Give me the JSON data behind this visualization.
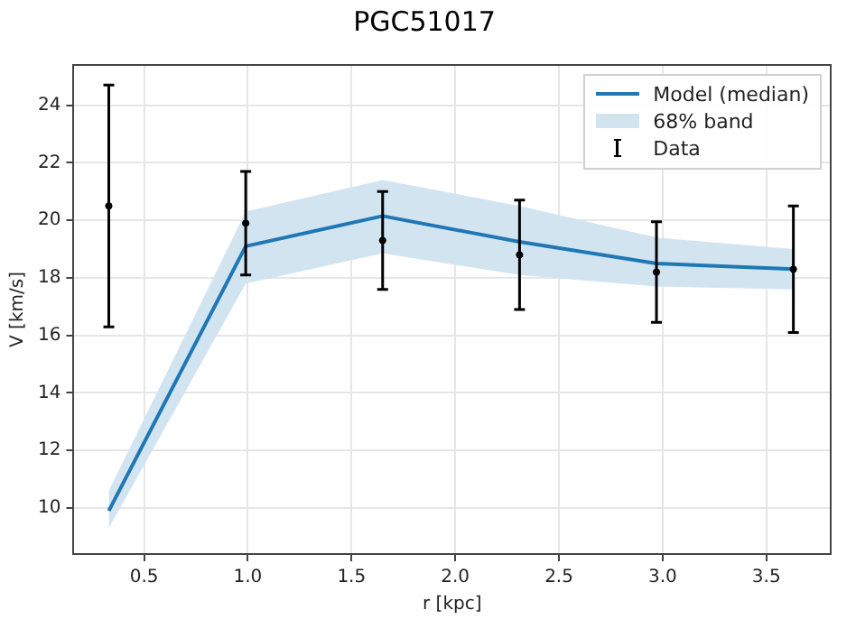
{
  "chart_data": {
    "type": "line",
    "title": "PGC51017",
    "xlabel": "r [kpc]",
    "ylabel": "V [km/s]",
    "xlim": [
      0.16,
      3.81
    ],
    "xticks": [
      0.5,
      {
        "value": 1,
        "label": "1.0"
      },
      1.5,
      {
        "value": 2,
        "label": "2.0"
      },
      2.5,
      {
        "value": 3,
        "label": "3.0"
      },
      3.5
    ],
    "ylim": [
      8.4,
      25.4
    ],
    "yticks": [
      10,
      12,
      14,
      16,
      18,
      20,
      22,
      24
    ],
    "grid": true,
    "legend": "top right",
    "series": [
      {
        "name": "Model (median)",
        "type": "line",
        "color": "#1f77b4",
        "x": [
          0.33,
          0.99,
          1.65,
          2.31,
          2.97,
          3.63
        ],
        "values": [
          9.9,
          19.1,
          20.15,
          19.25,
          18.5,
          18.3
        ]
      },
      {
        "name": "68% band",
        "type": "area",
        "color": "#d3e4f1",
        "x": [
          0.33,
          0.99,
          1.65,
          2.31,
          2.97,
          3.63
        ],
        "values": [
          null,
          null,
          null,
          null,
          null,
          null
        ],
        "lower": [
          9.3,
          17.8,
          18.85,
          18.1,
          17.7,
          17.6
        ],
        "upper": [
          10.6,
          20.3,
          21.4,
          20.5,
          19.4,
          19.0
        ]
      },
      {
        "name": "Data",
        "type": "scatter",
        "color": "#000000",
        "marker": "circle",
        "x": [
          0.33,
          0.99,
          1.65,
          2.31,
          2.97,
          3.63
        ],
        "values": [
          20.5,
          19.9,
          19.3,
          18.8,
          18.2,
          18.3
        ],
        "errors": [
          4.2,
          1.8,
          1.7,
          1.9,
          1.75,
          2.2
        ]
      }
    ]
  }
}
